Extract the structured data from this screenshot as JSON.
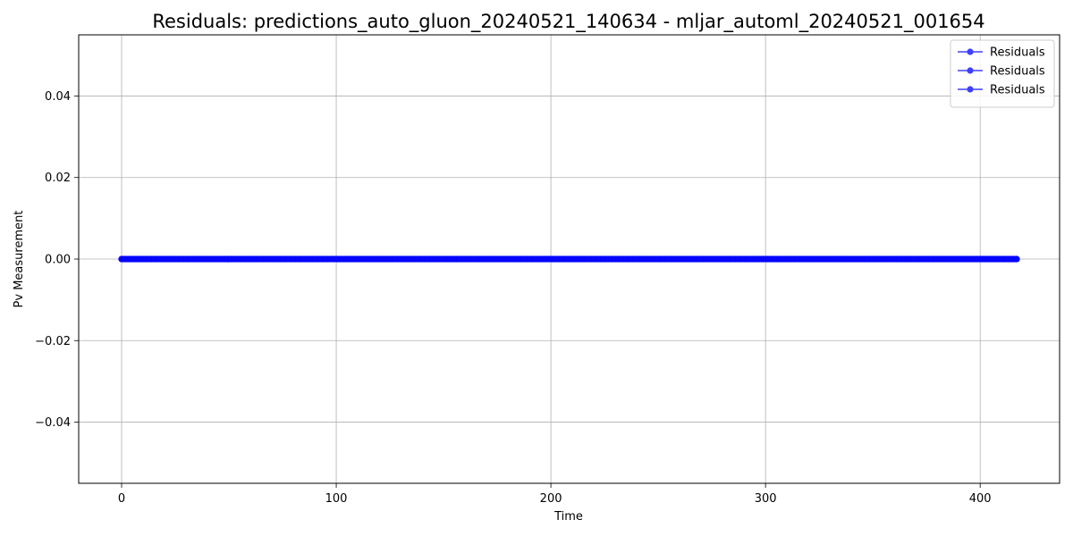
{
  "chart_data": {
    "type": "line",
    "title": "Residuals: predictions_auto_gluon_20240521_140634 - mljar_automl_20240521_001654",
    "xlabel": "Time",
    "ylabel": "Pv Measurement",
    "xlim": [
      -20,
      437
    ],
    "ylim": [
      -0.055,
      0.055
    ],
    "xticks": [
      0,
      100,
      200,
      300,
      400
    ],
    "yticks": [
      -0.04,
      -0.02,
      0.0,
      0.02,
      0.04
    ],
    "xtick_labels": [
      "0",
      "100",
      "200",
      "300",
      "400"
    ],
    "ytick_labels": [
      "−0.04",
      "−0.02",
      "0.00",
      "0.02",
      "0.04"
    ],
    "grid": true,
    "legend_position": "top-right",
    "series": [
      {
        "name": "Residuals",
        "color": "#0000ff",
        "x_start": 0,
        "x_end": 417,
        "x_step": 1,
        "constant_value": 0.0
      },
      {
        "name": "Residuals",
        "color": "#0000ff",
        "x_start": 0,
        "x_end": 417,
        "x_step": 1,
        "constant_value": 0.0
      },
      {
        "name": "Residuals",
        "color": "#0000ff",
        "x_start": 0,
        "x_end": 417,
        "x_step": 1,
        "constant_value": 0.0
      }
    ]
  }
}
